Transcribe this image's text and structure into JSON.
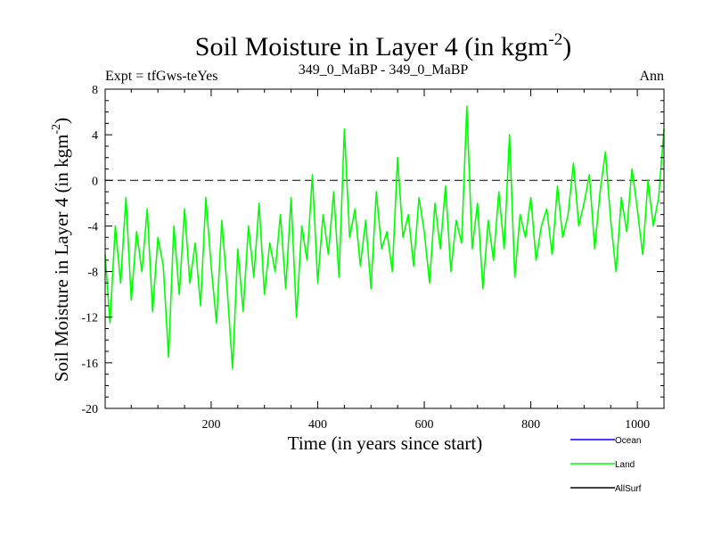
{
  "chart_data": {
    "type": "line",
    "title": "Soil Moisture in Layer 4 (in kgm",
    "title_sup": "-2",
    "title_close": ")",
    "subtitle_left": "Expt = tfGws-teYes",
    "subtitle_center": "349_0_MaBP - 349_0_MaBP",
    "subtitle_right": "Ann",
    "xlabel": "Time (in years since start)",
    "ylabel": "Soil Moisture in Layer 4 (in kgm",
    "ylabel_sup": "-2",
    "ylabel_close": ")",
    "xlim": [
      1,
      1050
    ],
    "ylim": [
      -20,
      8
    ],
    "x_ticks": [
      200,
      400,
      600,
      800,
      1000
    ],
    "x_tick_labels": [
      "200",
      "400",
      "600",
      "800",
      "1000"
    ],
    "y_ticks": [
      -20,
      -16,
      -12,
      -8,
      -4,
      0,
      4,
      8
    ],
    "y_tick_labels": [
      "-20",
      "-16",
      "-12",
      "-8",
      "-4",
      "0",
      "4",
      "8"
    ],
    "zero_line": 0,
    "legend": [
      {
        "name": "Ocean",
        "color": "#0000ff"
      },
      {
        "name": "Land",
        "color": "#00ff00"
      },
      {
        "name": "AllSurf",
        "color": "#000000"
      }
    ],
    "series": [
      {
        "name": "Land",
        "color": "#00ff00",
        "x": [
          1,
          10,
          20,
          30,
          40,
          50,
          60,
          70,
          80,
          90,
          100,
          110,
          120,
          130,
          140,
          150,
          160,
          170,
          180,
          190,
          200,
          210,
          220,
          230,
          240,
          250,
          260,
          270,
          280,
          290,
          300,
          310,
          320,
          330,
          340,
          350,
          360,
          370,
          380,
          390,
          400,
          410,
          420,
          430,
          440,
          450,
          460,
          470,
          480,
          490,
          500,
          510,
          520,
          530,
          540,
          550,
          560,
          570,
          580,
          590,
          600,
          610,
          620,
          630,
          640,
          650,
          660,
          670,
          680,
          690,
          700,
          710,
          720,
          730,
          740,
          750,
          760,
          770,
          780,
          790,
          800,
          810,
          820,
          830,
          840,
          850,
          860,
          870,
          880,
          890,
          900,
          910,
          920,
          930,
          940,
          950,
          960,
          970,
          980,
          990,
          1000,
          1010,
          1020,
          1030,
          1040,
          1050
        ],
        "values": [
          -6.5,
          -12.5,
          -4.0,
          -9.0,
          -1.5,
          -10.5,
          -4.5,
          -8.0,
          -2.5,
          -11.5,
          -5.0,
          -7.5,
          -15.5,
          -4.0,
          -10.0,
          -2.5,
          -9.0,
          -5.5,
          -11.0,
          -1.5,
          -7.5,
          -12.5,
          -3.5,
          -9.5,
          -16.5,
          -6.0,
          -11.5,
          -4.0,
          -8.5,
          -2.0,
          -10.0,
          -5.5,
          -8.0,
          -3.0,
          -9.5,
          -1.5,
          -12.0,
          -4.0,
          -7.0,
          0.5,
          -9.0,
          -3.0,
          -6.5,
          -1.0,
          -8.5,
          4.5,
          -5.0,
          -2.5,
          -7.5,
          -3.5,
          -9.5,
          -1.0,
          -6.0,
          -4.5,
          -8.0,
          2.0,
          -5.0,
          -3.0,
          -7.5,
          -1.5,
          -4.5,
          -9.0,
          -2.0,
          -6.0,
          -0.5,
          -8.0,
          -3.5,
          -5.5,
          6.5,
          -6.0,
          -2.0,
          -9.5,
          -3.5,
          -7.0,
          -1.0,
          -6.0,
          4.0,
          -8.5,
          -3.0,
          -5.0,
          -1.5,
          -7.0,
          -4.0,
          -2.5,
          -6.5,
          -0.5,
          -5.0,
          -3.0,
          1.5,
          -4.0,
          -2.0,
          0.5,
          -6.0,
          -1.0,
          2.5,
          -3.5,
          -8.0,
          -1.5,
          -4.5,
          1.0,
          -2.5,
          -6.5,
          0.0,
          -4.0,
          -1.5,
          4.5
        ]
      }
    ]
  }
}
